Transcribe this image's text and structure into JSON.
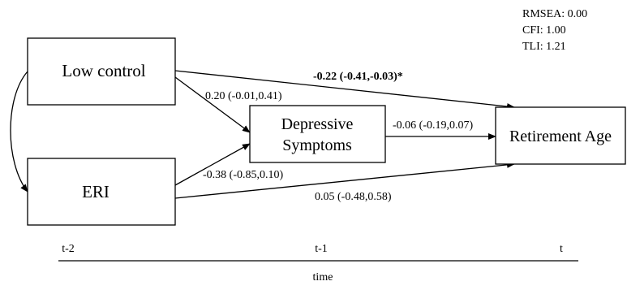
{
  "fit_stats": {
    "rmsea": "RMSEA: 0.00",
    "cfi": "CFI: 1.00",
    "tli": "TLI: 1.21"
  },
  "nodes": {
    "low_control": "Low control",
    "eri": "ERI",
    "depressive_line1": "Depressive",
    "depressive_line2": "Symptoms",
    "retirement_age": "Retirement Age"
  },
  "paths": {
    "lowcontrol_to_retirement": "-0.22 (-0.41,-0.03)*",
    "lowcontrol_to_depressive": "0.20 (-0.01,0.41)",
    "depressive_to_retirement": "-0.06 (-0.19,0.07)",
    "eri_to_depressive": "-0.38 (-0.85,0.10)",
    "eri_to_retirement": "0.05 (-0.48,0.58)"
  },
  "timeline": {
    "t_minus_2": "t-2",
    "t_minus_1": "t-1",
    "t": "t",
    "axis_label": "time"
  }
}
